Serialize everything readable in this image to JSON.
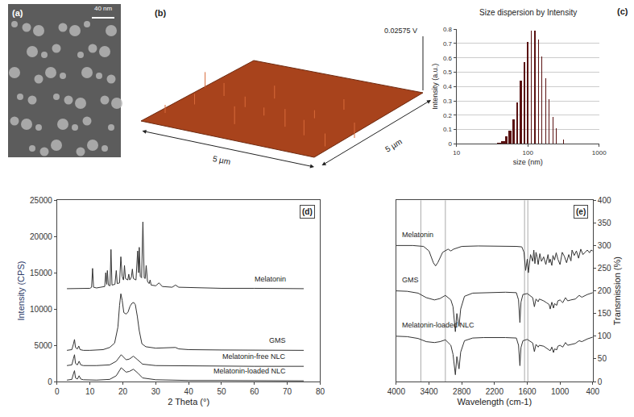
{
  "panels": {
    "a": {
      "label": "(a)",
      "scale_bar": "40 nm"
    },
    "b": {
      "label": "(b)",
      "z_label": "0.02575 V",
      "x_label": "5 µm",
      "y_label": "5 µm"
    }
  },
  "chart_data": [
    {
      "type": "bar",
      "label": "(c)",
      "title": "Size dispersion by Intensity",
      "xlabel": "size (nm)",
      "ylabel": "Intensity (a.u.)",
      "log": "x",
      "grid": true,
      "color": "#5a1212",
      "x": [
        40,
        45,
        50,
        56,
        63,
        71,
        80,
        89,
        100,
        112,
        126,
        141,
        158,
        178,
        200,
        224,
        251,
        282,
        316,
        355
      ],
      "values": [
        0.01,
        0.02,
        0.05,
        0.09,
        0.17,
        0.29,
        0.44,
        0.57,
        0.71,
        0.79,
        0.79,
        0.73,
        0.61,
        0.46,
        0.31,
        0.19,
        0.11,
        0.06,
        0.03,
        0.01
      ],
      "xlim": [
        10,
        1000
      ],
      "xticks": [
        10,
        100,
        1000
      ],
      "ylim": [
        0,
        0.8
      ],
      "yticks": [
        0,
        0.1,
        0.2,
        0.3,
        0.4,
        0.5,
        0.6,
        0.7,
        0.8
      ]
    },
    {
      "type": "line",
      "label": "(d)",
      "xlabel": "2 Theta (°)",
      "ylabel": "Intensity (CPS)",
      "grid": false,
      "xlim": [
        0,
        80
      ],
      "xticks": [
        0,
        10,
        20,
        30,
        40,
        50,
        60,
        70,
        80
      ],
      "ylim": [
        0,
        25000
      ],
      "yticks": [
        0,
        5000,
        10000,
        15000,
        20000,
        25000
      ],
      "series": [
        {
          "name": "Melatonin",
          "color": "#333333",
          "x": [
            3,
            10,
            10.5,
            10.8,
            11.1,
            12,
            14.5,
            14.8,
            15.1,
            15.3,
            15.6,
            16.1,
            16.4,
            16.7,
            17.6,
            18,
            18.3,
            19,
            19.4,
            19.8,
            20.2,
            20.5,
            20.8,
            21.5,
            21.8,
            22.1,
            22.6,
            22.9,
            23.2,
            24,
            24.5,
            24.8,
            25,
            25.3,
            25.7,
            26.1,
            26.5,
            26.8,
            27.1,
            27.5,
            28,
            28.3,
            28.6,
            30,
            31,
            32,
            35,
            36,
            37,
            40,
            50,
            60,
            75
          ],
          "values": [
            12800,
            12850,
            13000,
            15600,
            13000,
            12900,
            13100,
            15000,
            13400,
            15300,
            13300,
            13200,
            18200,
            13300,
            13400,
            15300,
            13500,
            13600,
            17200,
            14500,
            14000,
            16000,
            14200,
            14000,
            14800,
            14000,
            14400,
            15500,
            14200,
            14000,
            18000,
            15000,
            18500,
            14500,
            14300,
            22000,
            14300,
            14200,
            16000,
            13800,
            13500,
            14000,
            13300,
            13200,
            13600,
            13100,
            13000,
            13300,
            13000,
            12950,
            12850,
            12850,
            12800
          ]
        },
        {
          "name": "GMS",
          "color": "#333333",
          "x": [
            3,
            4.5,
            5,
            5.3,
            5.6,
            6.2,
            6.6,
            7,
            8,
            10,
            14,
            16,
            17.5,
            18.5,
            19,
            19.4,
            19.8,
            20.3,
            21,
            21.6,
            22.2,
            22.8,
            23.3,
            23.8,
            24.4,
            25,
            25.8,
            27,
            30,
            36,
            37,
            40,
            50,
            60,
            75
          ],
          "values": [
            4300,
            4400,
            5200,
            5800,
            4700,
            4500,
            4900,
            4400,
            4300,
            4300,
            4400,
            4700,
            5300,
            7500,
            10500,
            12100,
            11200,
            9500,
            9300,
            9600,
            10400,
            10800,
            10900,
            10600,
            9000,
            7000,
            5200,
            4800,
            4600,
            4700,
            4500,
            4400,
            4350,
            4300,
            4300
          ]
        },
        {
          "name": "Melatonin-free NLC",
          "color": "#333333",
          "x": [
            3,
            4.5,
            5,
            5.3,
            5.6,
            6.2,
            6.7,
            7.2,
            8,
            12,
            16,
            18,
            19.5,
            21,
            22,
            23.2,
            24.5,
            26,
            30,
            40,
            50,
            60,
            75
          ],
          "values": [
            2200,
            2300,
            3200,
            3700,
            2500,
            2300,
            2800,
            2300,
            2200,
            2200,
            2300,
            2800,
            3700,
            3000,
            3100,
            3500,
            3000,
            2400,
            2200,
            2150,
            2150,
            2100,
            2100
          ]
        },
        {
          "name": "Melatonin-loaded NLC",
          "color": "#333333",
          "x": [
            3,
            4.5,
            5,
            5.3,
            5.6,
            6.2,
            6.7,
            7.2,
            8,
            12,
            16,
            18,
            19.5,
            21,
            22,
            23.2,
            24.5,
            26,
            30,
            40,
            50,
            60,
            75
          ],
          "values": [
            200,
            300,
            1100,
            1500,
            500,
            350,
            800,
            350,
            250,
            200,
            300,
            800,
            1900,
            1300,
            1400,
            1700,
            1200,
            500,
            250,
            150,
            150,
            100,
            100
          ]
        }
      ]
    },
    {
      "type": "line",
      "label": "(e)",
      "xlabel": "Wavelength (cm-1)",
      "ylabel": "Transmission (%)",
      "grid": false,
      "xlim": [
        4000,
        400
      ],
      "xticks": [
        4000,
        3400,
        2800,
        2200,
        1600,
        1000,
        400
      ],
      "ylim": [
        0,
        400
      ],
      "yticks": [
        0,
        50,
        100,
        150,
        200,
        250,
        300,
        350,
        400
      ],
      "vlines": [
        3550,
        3100,
        1650,
        1590
      ],
      "series": [
        {
          "name": "Melatonin",
          "color": "#333333",
          "x": [
            4000,
            3700,
            3500,
            3400,
            3320,
            3280,
            3240,
            3150,
            3050,
            3000,
            2950,
            2900,
            2800,
            2500,
            2200,
            2000,
            1800,
            1700,
            1660,
            1630,
            1600,
            1580,
            1560,
            1540,
            1500,
            1480,
            1460,
            1440,
            1420,
            1400,
            1370,
            1340,
            1300,
            1260,
            1220,
            1200,
            1180,
            1150,
            1130,
            1100,
            1070,
            1040,
            1000,
            960,
            920,
            880,
            840,
            800,
            780,
            740,
            700,
            660,
            620,
            580,
            540,
            500,
            460,
            430,
            400
          ],
          "values": [
            300,
            300,
            298,
            288,
            262,
            255,
            262,
            285,
            292,
            288,
            292,
            294,
            298,
            299,
            299,
            298,
            298,
            297,
            285,
            245,
            270,
            240,
            262,
            280,
            265,
            290,
            260,
            285,
            275,
            258,
            282,
            265,
            275,
            258,
            280,
            262,
            270,
            256,
            278,
            268,
            284,
            270,
            258,
            285,
            276,
            262,
            280,
            266,
            290,
            278,
            288,
            272,
            292,
            280,
            285,
            290,
            284,
            290,
            288
          ]
        },
        {
          "name": "GMS",
          "color": "#333333",
          "x": [
            4000,
            3800,
            3600,
            3450,
            3300,
            3200,
            3100,
            3000,
            2960,
            2917,
            2890,
            2850,
            2820,
            2750,
            2600,
            2400,
            2000,
            1800,
            1760,
            1735,
            1715,
            1680,
            1600,
            1500,
            1470,
            1440,
            1400,
            1380,
            1300,
            1250,
            1200,
            1180,
            1150,
            1120,
            1100,
            1060,
            1040,
            1000,
            950,
            900,
            860,
            800,
            720,
            650,
            600,
            500,
            400
          ],
          "values": [
            200,
            199,
            195,
            185,
            180,
            183,
            190,
            180,
            165,
            110,
            150,
            122,
            160,
            188,
            195,
            196,
            197,
            196,
            180,
            130,
            175,
            192,
            194,
            185,
            165,
            182,
            176,
            182,
            178,
            174,
            170,
            160,
            175,
            162,
            172,
            168,
            178,
            180,
            174,
            185,
            178,
            180,
            182,
            190,
            186,
            192,
            196
          ]
        },
        {
          "name": "Melatonin-loaded NLC",
          "color": "#333333",
          "x": [
            4000,
            3800,
            3600,
            3450,
            3300,
            3200,
            3100,
            3000,
            2960,
            2917,
            2890,
            2850,
            2820,
            2750,
            2600,
            2400,
            2000,
            1800,
            1760,
            1735,
            1715,
            1680,
            1600,
            1500,
            1470,
            1440,
            1400,
            1380,
            1300,
            1250,
            1200,
            1180,
            1150,
            1120,
            1100,
            1060,
            1040,
            1000,
            950,
            900,
            860,
            800,
            720,
            650,
            600,
            500,
            400
          ],
          "values": [
            100,
            99,
            95,
            88,
            86,
            88,
            92,
            80,
            60,
            15,
            55,
            28,
            65,
            90,
            96,
            97,
            97,
            96,
            80,
            35,
            75,
            90,
            93,
            85,
            66,
            82,
            76,
            80,
            78,
            74,
            70,
            68,
            76,
            64,
            72,
            70,
            78,
            80,
            76,
            86,
            80,
            82,
            84,
            90,
            88,
            94,
            98
          ]
        }
      ]
    }
  ]
}
